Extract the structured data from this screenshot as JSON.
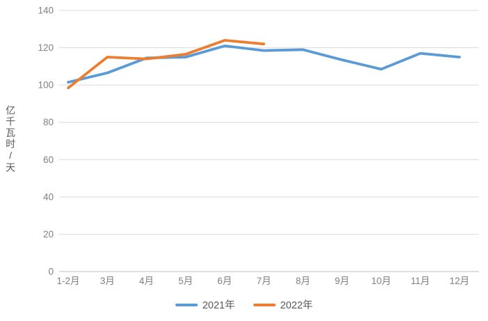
{
  "chart_data": {
    "type": "line",
    "title": "",
    "xlabel": "",
    "ylabel": "亿千瓦时/天",
    "ylim": [
      0,
      140
    ],
    "yticks": [
      0,
      20,
      40,
      60,
      80,
      100,
      120,
      140
    ],
    "grid": true,
    "legend_position": "bottom-center",
    "categories": [
      "1-2月",
      "3月",
      "4月",
      "5月",
      "6月",
      "7月",
      "8月",
      "9月",
      "10月",
      "11月",
      "12月"
    ],
    "series": [
      {
        "name": "2021年",
        "color": "#5B9BD5",
        "values": [
          101.5,
          106.5,
          114.5,
          115,
          121,
          118.5,
          119,
          113.5,
          108.5,
          117,
          115
        ]
      },
      {
        "name": "2022年",
        "color": "#ED7D31",
        "values": [
          98.5,
          115,
          114,
          116.5,
          124,
          122,
          null,
          null,
          null,
          null,
          null
        ]
      }
    ],
    "style": {
      "gridline_color": "#d9d9d9",
      "axis_line_color": "#bfbfbf",
      "tick_label_color": "#808080",
      "legend_text_color": "#595959"
    }
  }
}
